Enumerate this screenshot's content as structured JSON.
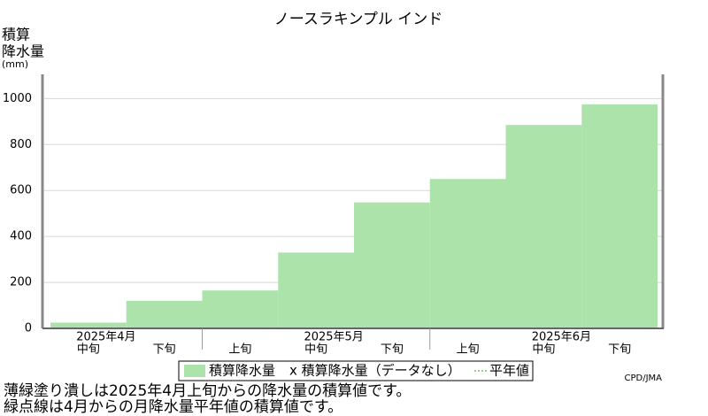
{
  "chart_data": {
    "type": "step-area",
    "title": "ノースラキンプル インド",
    "y_label": [
      "積算",
      "降水量",
      "(mm)"
    ],
    "categories": [
      "中旬",
      "下旬",
      "上旬",
      "中旬",
      "下旬",
      "上旬",
      "中旬",
      "下旬"
    ],
    "month_labels": [
      "2025年4月",
      "2025年5月",
      "2025年6月"
    ],
    "series": [
      {
        "name": "積算降水量",
        "color": "#abe3aa",
        "values": [
          25,
          120,
          165,
          330,
          548,
          650,
          885,
          975
        ]
      }
    ],
    "legend_items": [
      "x 積算降水量（データなし）",
      "平年値"
    ],
    "ylim": [
      0,
      1090
    ],
    "yticks": [
      0,
      200,
      400,
      600,
      800,
      1000
    ],
    "grid": true,
    "credit": "CPD/JMA",
    "notes": [
      "薄緑塗り潰しは2025年4月上旬からの降水量の積算値です。",
      "緑点線は4月からの月降水量平年値の積算値です。"
    ]
  }
}
